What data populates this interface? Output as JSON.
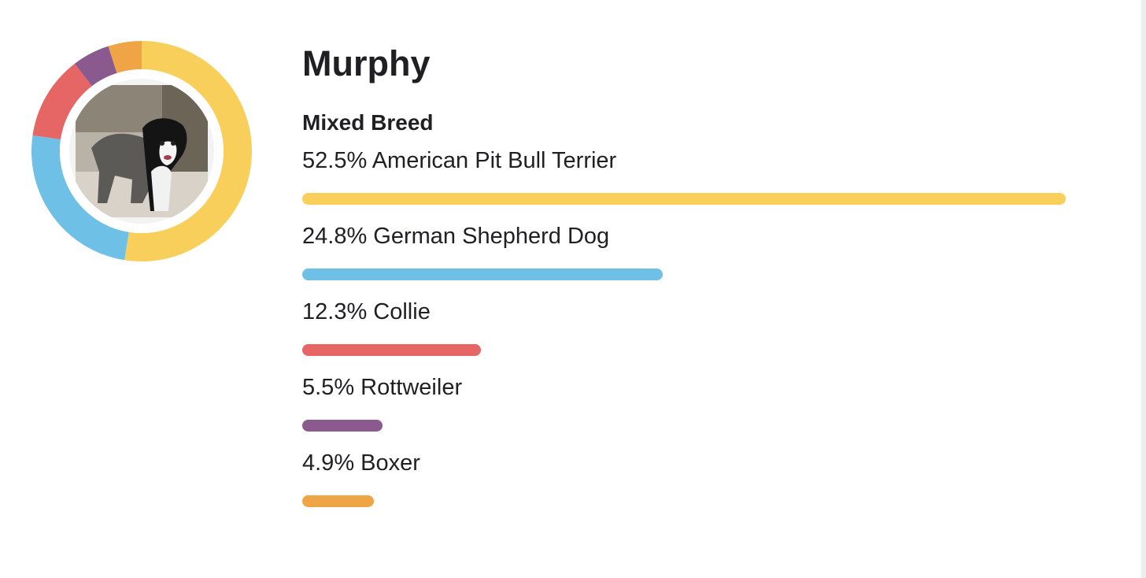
{
  "dog": {
    "name": "Murphy",
    "breed_type": "Mixed Breed",
    "photo_icon": "dog-photo-icon"
  },
  "breeds": [
    {
      "pct_label": "52.5%",
      "name": "American Pit Bull Terrier",
      "percent": 52.5,
      "color": "#f8cf5a"
    },
    {
      "pct_label": "24.8%",
      "name": "German Shepherd Dog",
      "percent": 24.8,
      "color": "#6fc0e6"
    },
    {
      "pct_label": "12.3%",
      "name": "Collie",
      "percent": 12.3,
      "color": "#e66565"
    },
    {
      "pct_label": "5.5%",
      "name": "Rottweiler",
      "percent": 5.5,
      "color": "#8a5a8e"
    },
    {
      "pct_label": "4.9%",
      "name": "Boxer",
      "percent": 4.9,
      "color": "#efa445"
    }
  ]
}
